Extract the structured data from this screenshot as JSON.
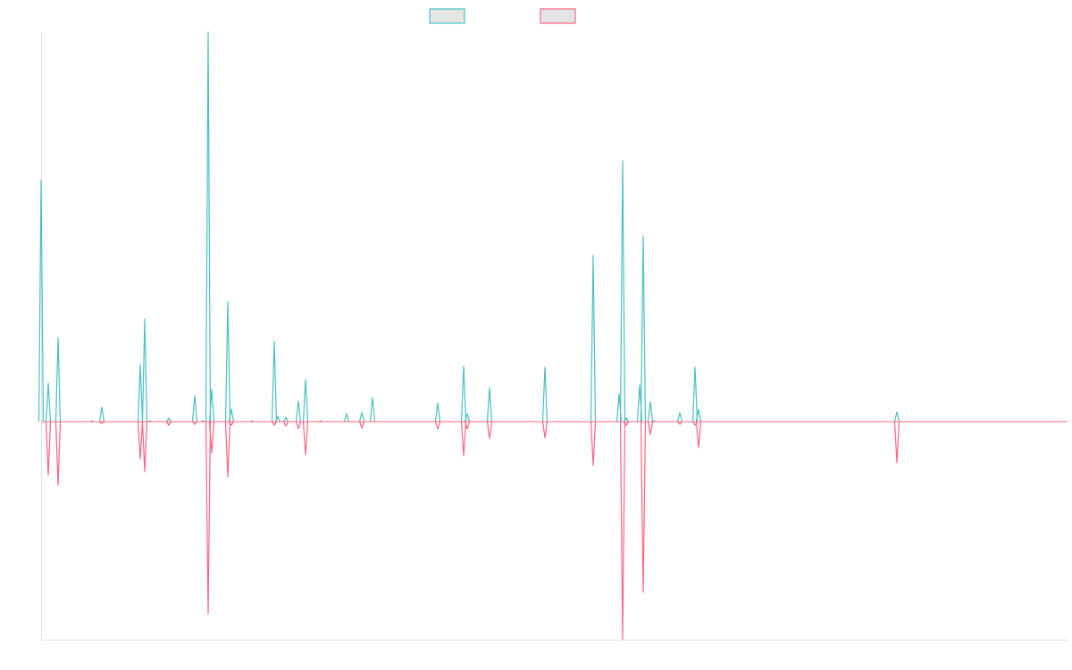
{
  "chart_data": {
    "type": "line",
    "title": "",
    "xlabel": "",
    "ylabel": "",
    "xlim": [
      0,
      1149
    ],
    "ylim": [
      -244,
      436
    ],
    "grid": false,
    "legend_placement": "top-center",
    "series": [
      {
        "name": "",
        "color": "#4bc0c0",
        "points": [
          [
            0,
            270
          ],
          [
            8,
            43
          ],
          [
            19,
            94
          ],
          [
            57,
            1
          ],
          [
            68,
            16
          ],
          [
            111,
            64
          ],
          [
            116,
            115
          ],
          [
            122,
            1
          ],
          [
            143,
            4
          ],
          [
            172,
            29
          ],
          [
            181,
            1
          ],
          [
            187,
            436
          ],
          [
            191,
            36
          ],
          [
            209,
            134
          ],
          [
            213,
            14
          ],
          [
            236,
            1
          ],
          [
            261,
            90
          ],
          [
            265,
            6
          ],
          [
            274,
            5
          ],
          [
            288,
            23
          ],
          [
            296,
            47
          ],
          [
            313,
            1
          ],
          [
            342,
            9
          ],
          [
            359,
            10
          ],
          [
            371,
            27
          ],
          [
            444,
            21
          ],
          [
            473,
            62
          ],
          [
            477,
            9
          ],
          [
            502,
            38
          ],
          [
            564,
            61
          ],
          [
            618,
            186
          ],
          [
            647,
            31
          ],
          [
            651,
            292
          ],
          [
            655,
            4
          ],
          [
            670,
            41
          ],
          [
            674,
            208
          ],
          [
            682,
            22
          ],
          [
            686,
            1
          ],
          [
            715,
            10
          ],
          [
            732,
            61
          ],
          [
            736,
            14
          ],
          [
            958,
            11
          ]
        ]
      },
      {
        "name": "",
        "color": "#ff6384",
        "points": [
          [
            8,
            -60
          ],
          [
            19,
            -71
          ],
          [
            68,
            -2
          ],
          [
            111,
            -42
          ],
          [
            116,
            -56
          ],
          [
            143,
            -4
          ],
          [
            172,
            -3
          ],
          [
            187,
            -215
          ],
          [
            191,
            -35
          ],
          [
            209,
            -62
          ],
          [
            213,
            -4
          ],
          [
            261,
            -4
          ],
          [
            274,
            -5
          ],
          [
            288,
            -8
          ],
          [
            296,
            -37
          ],
          [
            359,
            -7
          ],
          [
            444,
            -8
          ],
          [
            473,
            -38
          ],
          [
            477,
            -8
          ],
          [
            502,
            -19
          ],
          [
            564,
            -18
          ],
          [
            618,
            -49
          ],
          [
            651,
            -244
          ],
          [
            655,
            -4
          ],
          [
            674,
            -191
          ],
          [
            682,
            -14
          ],
          [
            715,
            -3
          ],
          [
            732,
            -4
          ],
          [
            736,
            -29
          ],
          [
            958,
            -46
          ]
        ]
      }
    ]
  }
}
